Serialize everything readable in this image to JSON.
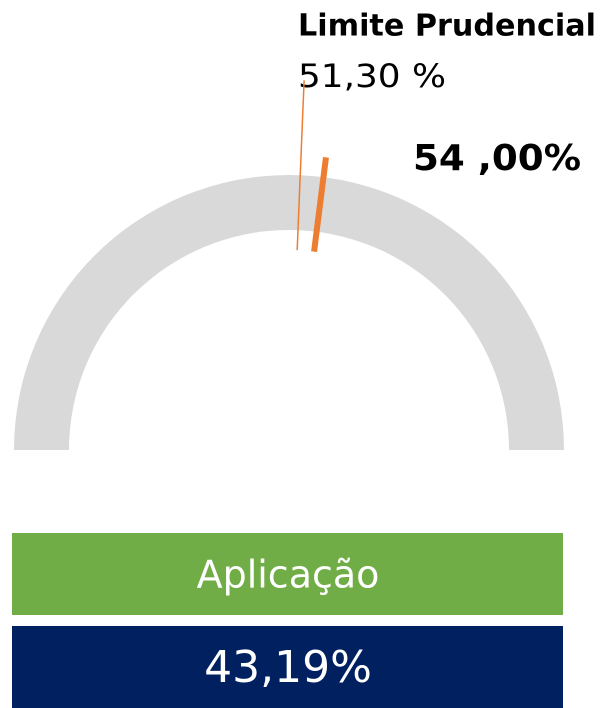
{
  "chart_data": {
    "type": "gauge",
    "ylim": [
      0,
      100
    ],
    "track_color": "#d9d9d9",
    "limit_label": "Limite Prudencial",
    "prudential_limit": 51.3,
    "prudential_limit_label": "51,30 %",
    "limit": 54,
    "limit_value_label": "54 ,00%",
    "limit_color": "#ed7d31",
    "category": "Aplicação",
    "category_color": "#70ad47",
    "value": 43.19,
    "value_label": "43,19%",
    "value_color": "#002060"
  }
}
